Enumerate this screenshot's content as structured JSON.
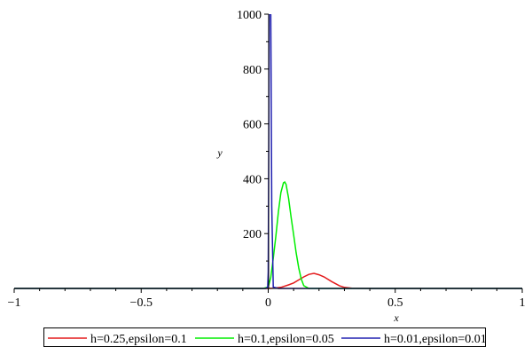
{
  "chart_data": {
    "type": "line",
    "title": "",
    "xlabel": "x",
    "ylabel": "y",
    "xlim": [
      -1,
      1
    ],
    "ylim": [
      0,
      1000
    ],
    "x_ticks": [
      -1,
      -0.5,
      0,
      0.5,
      1
    ],
    "x_tick_labels": [
      "−1",
      "−0.5",
      "0",
      "0.5",
      "1"
    ],
    "y_ticks": [
      200,
      400,
      600,
      800,
      1000
    ],
    "y_tick_labels": [
      "200",
      "400",
      "600",
      "800",
      "1000"
    ],
    "grid": false,
    "legend_position": "bottom",
    "series": [
      {
        "name": "h=0.25,epsilon=0.1",
        "color": "#e31a1c",
        "x": [
          -1,
          0,
          0.02,
          0.05,
          0.08,
          0.1,
          0.12,
          0.14,
          0.16,
          0.18,
          0.2,
          0.22,
          0.25,
          0.28,
          0.3,
          0.33,
          0.4,
          0.5,
          0.7,
          1
        ],
        "y": [
          0,
          0,
          1,
          4,
          13,
          20,
          31,
          42,
          51,
          55,
          50,
          42,
          25,
          10,
          4,
          1,
          0,
          0,
          0,
          0
        ]
      },
      {
        "name": "h=0.1,epsilon=0.05",
        "color": "#00ee00",
        "x": [
          -1,
          -0.02,
          0,
          0.01,
          0.02,
          0.03,
          0.04,
          0.05,
          0.06,
          0.065,
          0.07,
          0.08,
          0.09,
          0.1,
          0.11,
          0.12,
          0.13,
          0.14,
          0.16,
          0.2,
          1
        ],
        "y": [
          0,
          0,
          5,
          40,
          110,
          190,
          280,
          350,
          385,
          388,
          380,
          330,
          260,
          195,
          130,
          75,
          35,
          10,
          0,
          0,
          0
        ]
      },
      {
        "name": "h=0.01,epsilon=0.01",
        "color": "#2020b0",
        "x": [
          -1,
          -0.01,
          -0.002,
          0,
          0.002,
          0.004,
          0.007,
          0.01,
          0.014,
          0.02,
          0.04,
          1
        ],
        "y": [
          0,
          0,
          5,
          60,
          500,
          1000,
          1000,
          1000,
          300,
          5,
          0,
          0
        ]
      }
    ]
  }
}
